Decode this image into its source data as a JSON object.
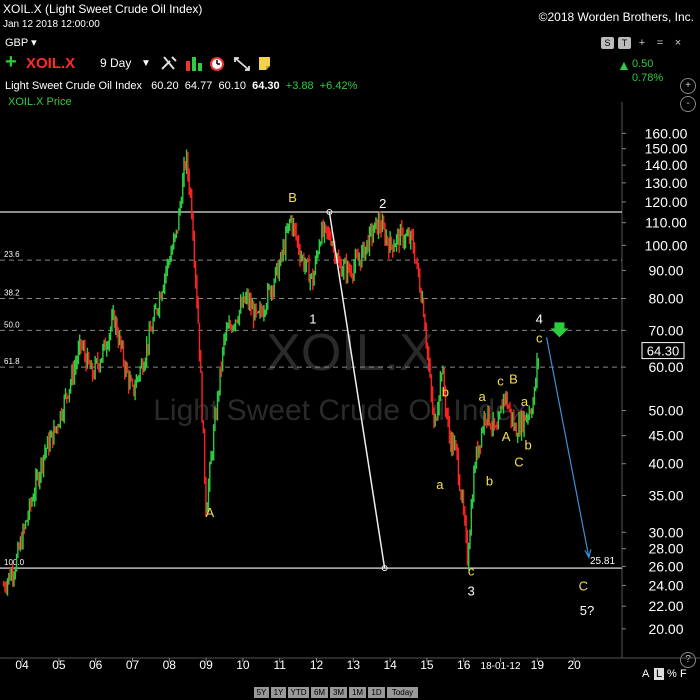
{
  "header": {
    "title": "XOIL.X (Light Sweet Crude Oil Index)",
    "date": "Jan 12 2018 12:00:00",
    "copyright": "©2018 Worden Brothers, Inc.",
    "currency": "GBP ▾"
  },
  "toolbar": {
    "symbol": "XOIL.X",
    "period": "9 Day",
    "icons": [
      "tools-icon",
      "bar-chart-icon",
      "alarm-clock-icon",
      "scale-icon",
      "note-icon"
    ]
  },
  "quote": {
    "name": "Light Sweet Crude Oil Index",
    "open": "60.20",
    "high": "64.77",
    "low": "60.10",
    "close": "64.30",
    "change": "+3.88",
    "change_pct": "+6.42%"
  },
  "change_box": {
    "change": "0.50",
    "pct": "0.78%"
  },
  "legend": "XOIL.X Price",
  "top_right_buttons": [
    "S",
    "T",
    "+",
    "=",
    "×"
  ],
  "side_buttons": [
    "+",
    "-",
    "?"
  ],
  "scale_buttons": [
    "A",
    "L",
    "%",
    "F"
  ],
  "range_buttons": [
    "5Y",
    "1Y",
    "YTD",
    "6M",
    "3M",
    "1M",
    "1D",
    "Today"
  ],
  "colors": {
    "up": "#2ecc40",
    "down": "#ff2222",
    "wave_label": "#f4e04d",
    "projection": "#3b8fd6",
    "background": "#000000"
  },
  "chart_data": {
    "type": "candlestick",
    "title": "XOIL.X",
    "subtitle": "Light Sweet Crude Oil Index",
    "y_scale": "log",
    "ylim": [
      18,
      175
    ],
    "y_ticks": [
      "160.00",
      "150.00",
      "140.00",
      "130.00",
      "120.00",
      "110.00",
      "100.00",
      "90.00",
      "80.00",
      "70.00",
      "60.00",
      "50.00",
      "45.00",
      "40.00",
      "35.00",
      "30.00",
      "28.00",
      "26.00",
      "24.00",
      "22.00",
      "20.00"
    ],
    "x_ticks": [
      "04",
      "05",
      "06",
      "07",
      "08",
      "09",
      "10",
      "11",
      "12",
      "13",
      "14",
      "15",
      "16",
      "18-01-12",
      "19",
      "20"
    ],
    "x_range": [
      2003.4,
      2020.3
    ],
    "last_price": "64.30",
    "support_level": "25.81",
    "series": [
      {
        "name": "XOIL.X Price",
        "points": [
          [
            2003.5,
            24
          ],
          [
            2003.8,
            26
          ],
          [
            2004.2,
            33
          ],
          [
            2004.6,
            42
          ],
          [
            2004.9,
            46
          ],
          [
            2005.3,
            56
          ],
          [
            2005.6,
            66
          ],
          [
            2005.9,
            58
          ],
          [
            2006.2,
            64
          ],
          [
            2006.5,
            74
          ],
          [
            2006.8,
            60
          ],
          [
            2007.0,
            54
          ],
          [
            2007.3,
            62
          ],
          [
            2007.6,
            74
          ],
          [
            2007.9,
            90
          ],
          [
            2008.2,
            105
          ],
          [
            2008.45,
            145
          ],
          [
            2008.6,
            120
          ],
          [
            2008.8,
            70
          ],
          [
            2009.0,
            33
          ],
          [
            2009.2,
            45
          ],
          [
            2009.5,
            68
          ],
          [
            2009.8,
            74
          ],
          [
            2010.1,
            80
          ],
          [
            2010.4,
            73
          ],
          [
            2010.7,
            82
          ],
          [
            2011.0,
            92
          ],
          [
            2011.3,
            112
          ],
          [
            2011.6,
            95
          ],
          [
            2011.9,
            86
          ],
          [
            2012.1,
            105
          ],
          [
            2012.4,
            104
          ],
          [
            2012.6,
            92
          ],
          [
            2012.9,
            90
          ],
          [
            2013.2,
            95
          ],
          [
            2013.5,
            105
          ],
          [
            2013.7,
            110
          ],
          [
            2014.0,
            100
          ],
          [
            2014.3,
            104
          ],
          [
            2014.6,
            102
          ],
          [
            2014.9,
            78
          ],
          [
            2015.2,
            46
          ],
          [
            2015.4,
            60
          ],
          [
            2015.6,
            45
          ],
          [
            2015.8,
            42
          ],
          [
            2016.0,
            32
          ],
          [
            2016.1,
            27
          ],
          [
            2016.3,
            40
          ],
          [
            2016.6,
            50
          ],
          [
            2016.9,
            45
          ],
          [
            2017.1,
            54
          ],
          [
            2017.4,
            46
          ],
          [
            2017.7,
            49
          ],
          [
            2017.9,
            52
          ],
          [
            2018.0,
            61
          ],
          [
            2018.05,
            64.3
          ]
        ]
      }
    ],
    "horizontal_levels": [
      {
        "price": 115,
        "label": ""
      },
      {
        "price": 94,
        "label": "23.6"
      },
      {
        "price": 80,
        "label": "38.2"
      },
      {
        "price": 70,
        "label": "50.0"
      },
      {
        "price": 60,
        "label": "61.8"
      },
      {
        "price": 25.81,
        "label": "100.0"
      }
    ],
    "annotations": [
      {
        "text": "A",
        "x": 2009.1,
        "y": 32
      },
      {
        "text": "B",
        "x": 2011.35,
        "y": 120
      },
      {
        "text": "1",
        "x": 2011.9,
        "y": 72
      },
      {
        "text": "2",
        "x": 2013.8,
        "y": 117
      },
      {
        "text": "b",
        "x": 2015.5,
        "y": 53
      },
      {
        "text": "a",
        "x": 2015.35,
        "y": 36
      },
      {
        "text": "c",
        "x": 2016.2,
        "y": 25
      },
      {
        "text": "3",
        "x": 2016.2,
        "y": 23
      },
      {
        "text": "a",
        "x": 2016.5,
        "y": 52
      },
      {
        "text": "b",
        "x": 2016.7,
        "y": 36.5
      },
      {
        "text": "c",
        "x": 2017.0,
        "y": 55.5
      },
      {
        "text": "B",
        "x": 2017.35,
        "y": 56
      },
      {
        "text": "A",
        "x": 2017.15,
        "y": 44
      },
      {
        "text": "a",
        "x": 2017.65,
        "y": 51
      },
      {
        "text": "b",
        "x": 2017.75,
        "y": 42.5
      },
      {
        "text": "C",
        "x": 2017.5,
        "y": 39.5
      },
      {
        "text": "4",
        "x": 2018.05,
        "y": 72
      },
      {
        "text": "c",
        "x": 2018.05,
        "y": 66.5
      },
      {
        "text": "C",
        "x": 2019.25,
        "y": 23.5
      },
      {
        "text": "5?",
        "x": 2019.35,
        "y": 21.2
      }
    ]
  }
}
